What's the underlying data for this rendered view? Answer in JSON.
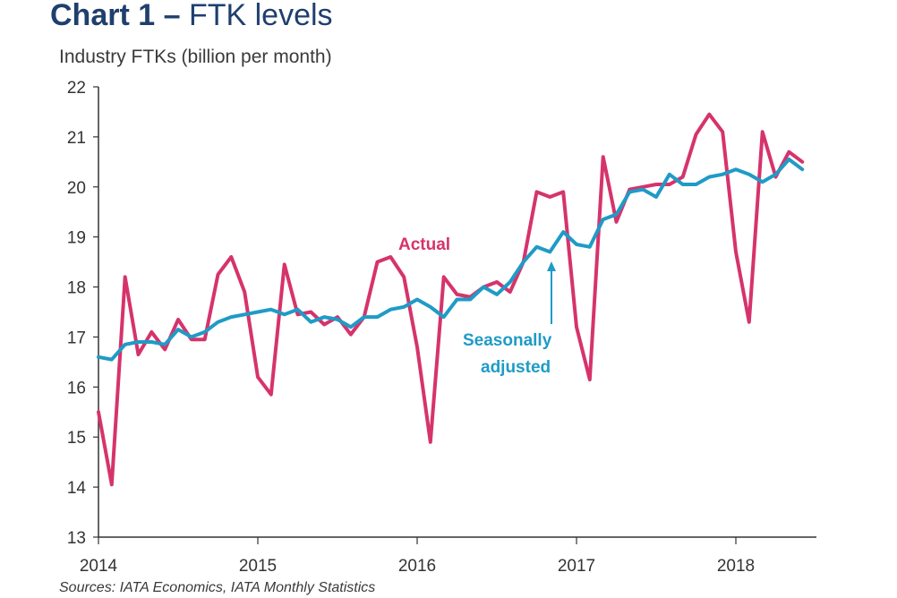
{
  "title_prefix": "Chart 1 –",
  "title_main": " FTK levels",
  "source": "Sources: IATA Economics, IATA Monthly Statistics",
  "colors": {
    "actual": "#d6336c",
    "seasonally_adjusted": "#1f9bc6",
    "title": "#1f3f6e",
    "axis": "#333333"
  },
  "chart_data": {
    "type": "line",
    "ylabel": "Industry FTKs (billion per month)",
    "xlabel": "",
    "ylim": [
      13,
      22
    ],
    "xlim": [
      2014.0,
      2018.5
    ],
    "yticks": [
      "13",
      "14",
      "15",
      "16",
      "17",
      "18",
      "19",
      "20",
      "21",
      "22"
    ],
    "xticks": [
      "2014",
      "2015",
      "2016",
      "2017",
      "2018"
    ],
    "grid": false,
    "legend": "none",
    "annotations": {
      "actual": "Actual",
      "sa_line1": "Seasonally",
      "sa_line2": "adjusted"
    },
    "x": [
      "2014-01",
      "2014-02",
      "2014-03",
      "2014-04",
      "2014-05",
      "2014-06",
      "2014-07",
      "2014-08",
      "2014-09",
      "2014-10",
      "2014-11",
      "2014-12",
      "2015-01",
      "2015-02",
      "2015-03",
      "2015-04",
      "2015-05",
      "2015-06",
      "2015-07",
      "2015-08",
      "2015-09",
      "2015-10",
      "2015-11",
      "2015-12",
      "2016-01",
      "2016-02",
      "2016-03",
      "2016-04",
      "2016-05",
      "2016-06",
      "2016-07",
      "2016-08",
      "2016-09",
      "2016-10",
      "2016-11",
      "2016-12",
      "2017-01",
      "2017-02",
      "2017-03",
      "2017-04",
      "2017-05",
      "2017-06",
      "2017-07",
      "2017-08",
      "2017-09",
      "2017-10",
      "2017-11",
      "2017-12",
      "2018-01",
      "2018-02",
      "2018-03",
      "2018-04",
      "2018-05",
      "2018-06"
    ],
    "series": [
      {
        "name": "Actual",
        "values": [
          15.5,
          14.05,
          18.2,
          16.65,
          17.1,
          16.75,
          17.35,
          16.95,
          16.95,
          18.25,
          18.6,
          17.9,
          16.2,
          15.85,
          18.45,
          17.45,
          17.5,
          17.25,
          17.4,
          17.05,
          17.4,
          18.5,
          18.6,
          18.2,
          16.8,
          14.9,
          18.2,
          17.85,
          17.8,
          18.0,
          18.1,
          17.9,
          18.5,
          19.9,
          19.8,
          19.9,
          17.2,
          16.15,
          20.6,
          19.3,
          19.95,
          20.0,
          20.05,
          20.05,
          20.2,
          21.05,
          21.45,
          21.1,
          18.7,
          17.3,
          21.1,
          20.2,
          20.7,
          20.5
        ]
      },
      {
        "name": "Seasonally adjusted",
        "values": [
          16.6,
          16.55,
          16.85,
          16.9,
          16.9,
          16.85,
          17.15,
          17.0,
          17.1,
          17.3,
          17.4,
          17.45,
          17.5,
          17.55,
          17.45,
          17.55,
          17.3,
          17.4,
          17.35,
          17.2,
          17.4,
          17.4,
          17.55,
          17.6,
          17.75,
          17.6,
          17.4,
          17.75,
          17.75,
          18.0,
          17.85,
          18.1,
          18.5,
          18.8,
          18.7,
          19.1,
          18.85,
          18.8,
          19.35,
          19.45,
          19.9,
          19.95,
          19.8,
          20.25,
          20.05,
          20.05,
          20.2,
          20.25,
          20.35,
          20.25,
          20.1,
          20.25,
          20.55,
          20.35
        ]
      }
    ]
  }
}
